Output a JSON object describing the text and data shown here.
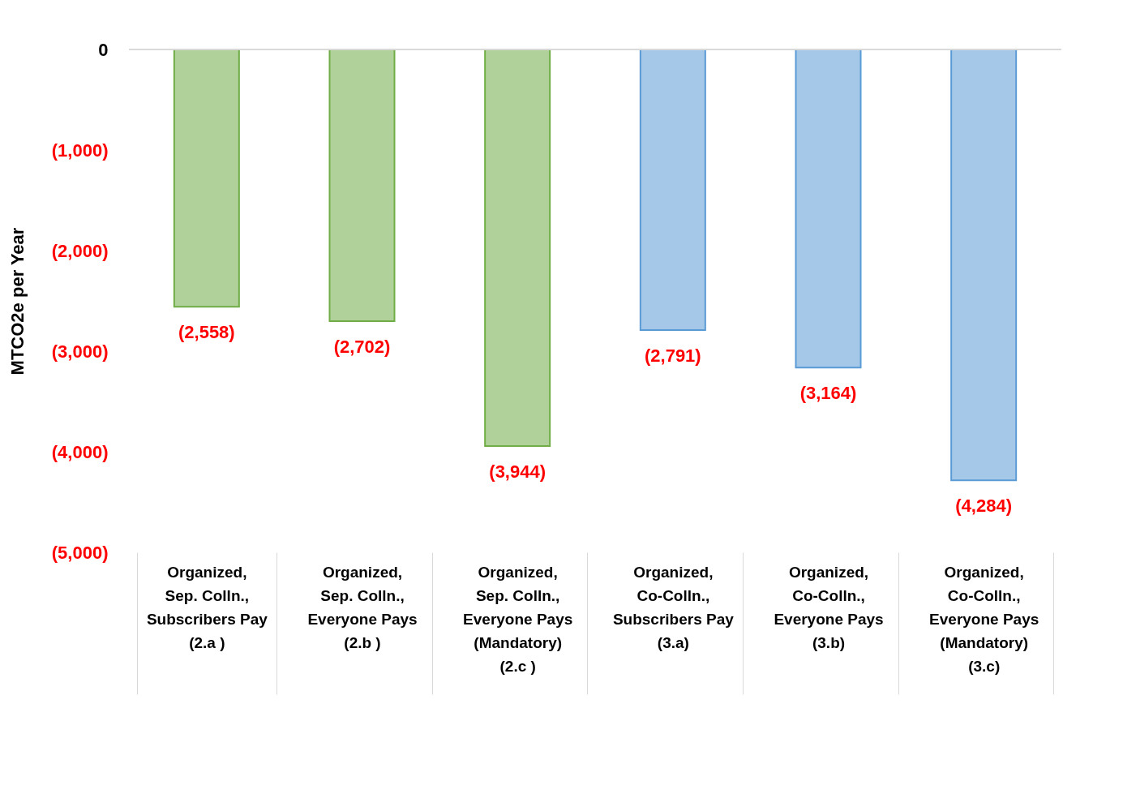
{
  "chart_data": {
    "type": "bar",
    "ylabel": "MTCO2e per Year",
    "categories": [
      "Organized,\nSep. Colln.,\nSubscribers Pay\n\n(2.a )",
      "Organized,\nSep. Colln.,\nEveryone Pays\n\n(2.b )",
      "Organized,\nSep. Colln.,\nEveryone Pays\n(Mandatory)\n(2.c )",
      "Organized,\nCo-Colln.,\nSubscribers Pay\n\n(3.a)",
      "Organized,\nCo-Colln.,\nEveryone Pays\n\n(3.b)",
      "Organized,\nCo-Colln.,\nEveryone Pays\n(Mandatory)\n(3.c)"
    ],
    "values": [
      -2558,
      -2702,
      -3944,
      -2791,
      -3164,
      -4284
    ],
    "value_labels": [
      "(2,558)",
      "(2,702)",
      "(3,944)",
      "(2,791)",
      "(3,164)",
      "(4,284)"
    ],
    "colors": [
      "#70ad47",
      "#70ad47",
      "#70ad47",
      "#5b9bd5",
      "#5b9bd5",
      "#5b9bd5"
    ],
    "ylim": [
      -5000,
      0
    ],
    "yticks": [
      0,
      {
        "value": -1000,
        "label": "(1,000)"
      },
      {
        "value": -2000,
        "label": "(2,000)"
      },
      {
        "value": -3000,
        "label": "(3,000)"
      },
      {
        "value": -4000,
        "label": "(4,000)"
      },
      {
        "value": -5000,
        "label": "(5,000)"
      }
    ],
    "grid": false
  }
}
